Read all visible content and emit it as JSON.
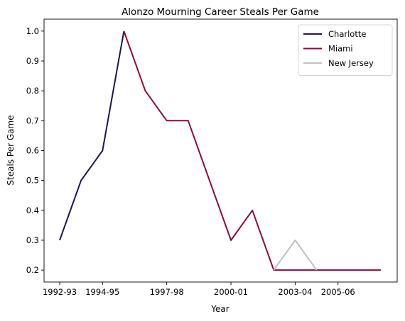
{
  "chart_data": {
    "type": "line",
    "title": "Alonzo Mourning Career Steals Per Game",
    "xlabel": "Year",
    "ylabel": "Steals Per Game",
    "x_ticks": [
      "1992-93",
      "1994-95",
      "1997-98",
      "2000-01",
      "2003-04",
      "2005-06"
    ],
    "y_ticks": [
      "0.2",
      "0.3",
      "0.4",
      "0.5",
      "0.6",
      "0.7",
      "0.8",
      "0.9",
      "1.0"
    ],
    "ylim": [
      0.16,
      1.04
    ],
    "grid": false,
    "legend_position": "top-right",
    "series": [
      {
        "name": "Charlotte",
        "color": "#1f1452",
        "points": [
          {
            "x": "1992-93",
            "y": 0.3
          },
          {
            "x": "1993-94",
            "y": 0.5
          },
          {
            "x": "1994-95",
            "y": 0.6
          },
          {
            "x": "1995-96",
            "y": 1.0
          }
        ]
      },
      {
        "name": "Miami",
        "color": "#930936",
        "points": [
          {
            "x": "1995-96",
            "y": 1.0
          },
          {
            "x": "1996-97",
            "y": 0.8
          },
          {
            "x": "1997-98",
            "y": 0.7
          },
          {
            "x": "1998-99",
            "y": 0.7
          },
          {
            "x": "1999-00",
            "y": 0.5
          },
          {
            "x": "2000-01",
            "y": 0.3
          },
          {
            "x": "2001-02",
            "y": 0.4
          },
          {
            "x": "2002-03",
            "y": 0.2
          },
          {
            "x": "2004-05",
            "y": 0.2
          },
          {
            "x": "2005-06",
            "y": 0.2
          },
          {
            "x": "2006-07",
            "y": 0.2
          },
          {
            "x": "2007-08",
            "y": 0.2
          }
        ]
      },
      {
        "name": "New Jersey",
        "color": "#c1c1c1",
        "points": [
          {
            "x": "2002-03",
            "y": 0.2
          },
          {
            "x": "2003-04",
            "y": 0.3
          },
          {
            "x": "2004-05",
            "y": 0.2
          }
        ]
      }
    ]
  }
}
